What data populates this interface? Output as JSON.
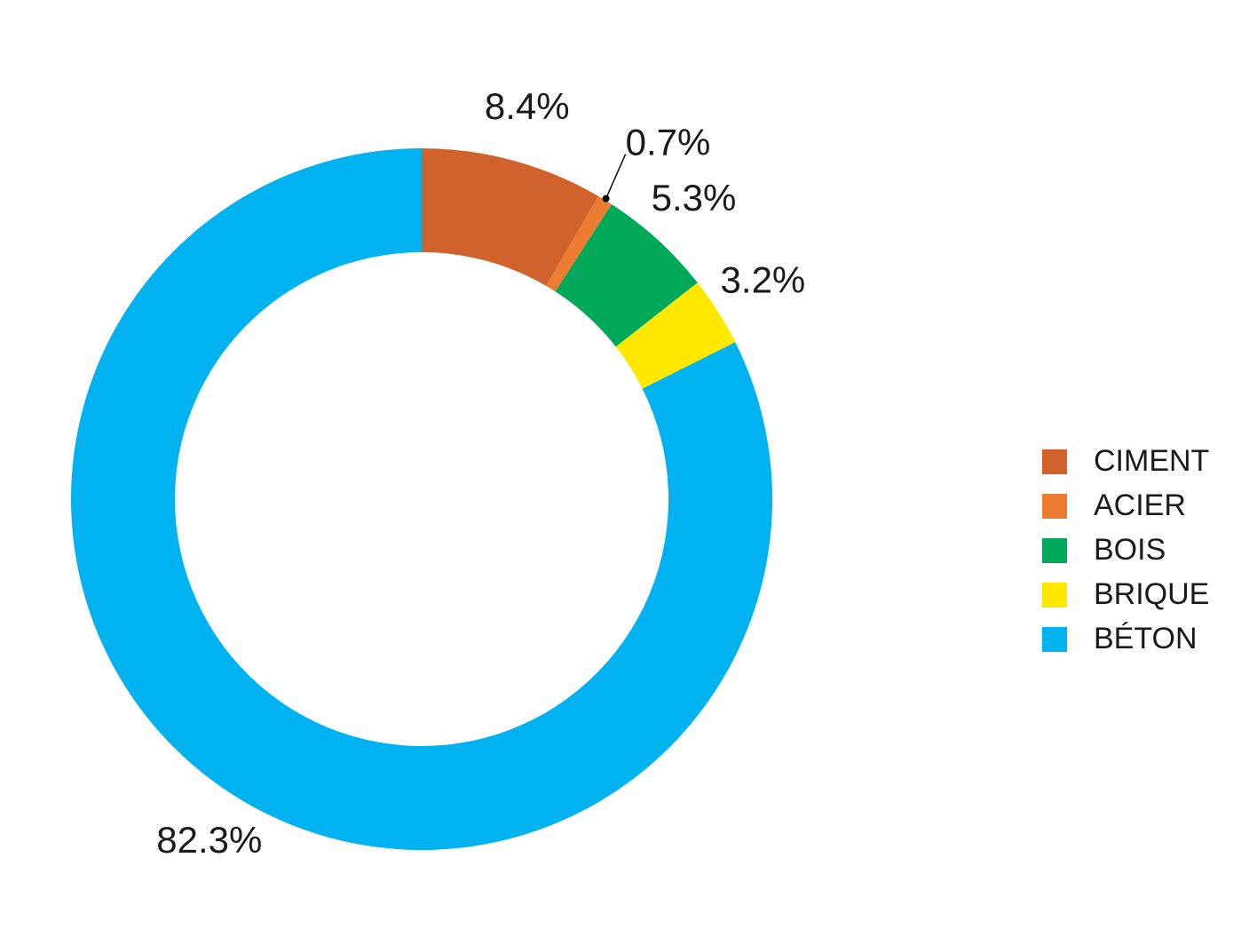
{
  "chart_data": {
    "type": "donut",
    "categories": [
      "CIMENT",
      "ACIER",
      "BOIS",
      "BRIQUE",
      "BÉTON"
    ],
    "values": [
      8.4,
      0.7,
      5.3,
      3.2,
      82.3
    ],
    "value_labels": [
      "8.4%",
      "0.7%",
      "5.3%",
      "3.2%",
      "82.3%"
    ],
    "colors": [
      "#d2622c",
      "#ec7d30",
      "#00a85a",
      "#ffe800",
      "#00b2ef"
    ],
    "legend": "right"
  }
}
